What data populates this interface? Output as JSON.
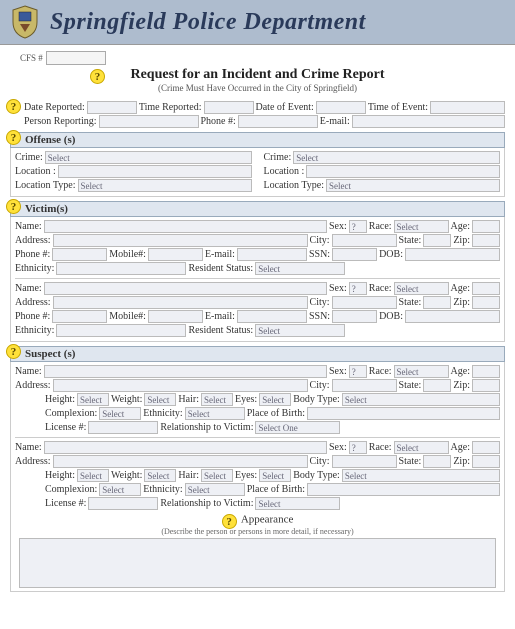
{
  "header": {
    "title": "Springfield Police Department"
  },
  "cfs": {
    "label": "CFS #"
  },
  "request": {
    "title": "Request for an Incident and Crime Report",
    "subtitle": "(Crime Must Have Occurred in the City of Springfield)"
  },
  "top": {
    "date_reported": "Date Reported:",
    "time_reported": "Time Reported:",
    "date_event": "Date of Event:",
    "time_event": "Time of Event:",
    "person_reporting": "Person Reporting:",
    "phone": "Phone #:",
    "email": "E-mail:"
  },
  "offense": {
    "heading": "Offense (s)",
    "crime": "Crime:",
    "crime_ph": "Select",
    "location": "Location :",
    "location_type": "Location Type:",
    "location_type_ph": "Select"
  },
  "victim": {
    "heading": "Victim(s)",
    "name": "Name:",
    "sex": "Sex:",
    "sex_ph": "?",
    "race": "Race:",
    "race_ph": "Select",
    "age": "Age:",
    "address": "Address:",
    "city": "City:",
    "state": "State:",
    "zip": "Zip:",
    "phone": "Phone #:",
    "mobile": "Mobile#:",
    "email": "E-mail:",
    "ssn": "SSN:",
    "dob": "DOB:",
    "ethnicity": "Ethnicity:",
    "resident_status": "Resident Status:",
    "resident_status_ph": "Select"
  },
  "suspect": {
    "heading": "Suspect (s)",
    "height": "Height:",
    "height_ph": "Select",
    "weight": "Weight:",
    "weight_ph": "Select",
    "hair": "Hair:",
    "hair_ph": "Select",
    "eyes": "Eyes:",
    "eyes_ph": "Select",
    "body_type": "Body Type:",
    "body_type_ph": "Select",
    "complexion": "Complexion:",
    "complexion_ph": "Select",
    "ethnicity_ph": "Select",
    "place_of_birth": "Place of Birth:",
    "license": "License #:",
    "relationship": "Relationship to Victim:",
    "relationship_ph": "Select One",
    "relationship_ph2": "Select"
  },
  "appearance": {
    "title": "Appearance",
    "subtitle": "(Describe the person or persons in more detail, if necessary)"
  },
  "style": {
    "header_bg": "#aebcce",
    "section_bg": "#dfe6ef",
    "field_bg": "#eef0f5",
    "help_bg": "#ffe13a"
  }
}
